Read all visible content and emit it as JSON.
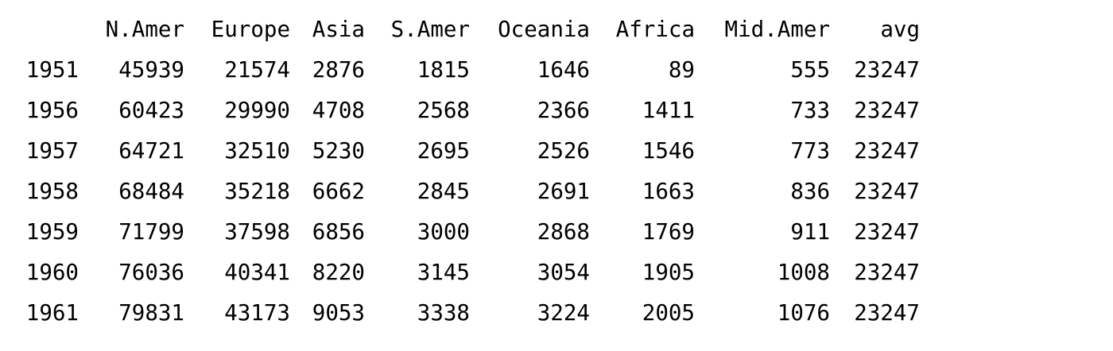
{
  "table": {
    "columns": [
      "",
      "N.Amer",
      "Europe",
      "Asia",
      "S.Amer",
      "Oceania",
      "Africa",
      "Mid.Amer",
      "avg"
    ],
    "rows": [
      [
        "1951",
        "45939",
        "21574",
        "2876",
        "1815",
        "1646",
        "89",
        "555",
        "23247"
      ],
      [
        "1956",
        "60423",
        "29990",
        "4708",
        "2568",
        "2366",
        "1411",
        "733",
        "23247"
      ],
      [
        "1957",
        "64721",
        "32510",
        "5230",
        "2695",
        "2526",
        "1546",
        "773",
        "23247"
      ],
      [
        "1958",
        "68484",
        "35218",
        "6662",
        "2845",
        "2691",
        "1663",
        "836",
        "23247"
      ],
      [
        "1959",
        "71799",
        "37598",
        "6856",
        "3000",
        "2868",
        "1769",
        "911",
        "23247"
      ],
      [
        "1960",
        "76036",
        "40341",
        "8220",
        "3145",
        "3054",
        "1905",
        "1008",
        "23247"
      ],
      [
        "1961",
        "79831",
        "43173",
        "9053",
        "3338",
        "3224",
        "2005",
        "1076",
        "23247"
      ]
    ]
  }
}
